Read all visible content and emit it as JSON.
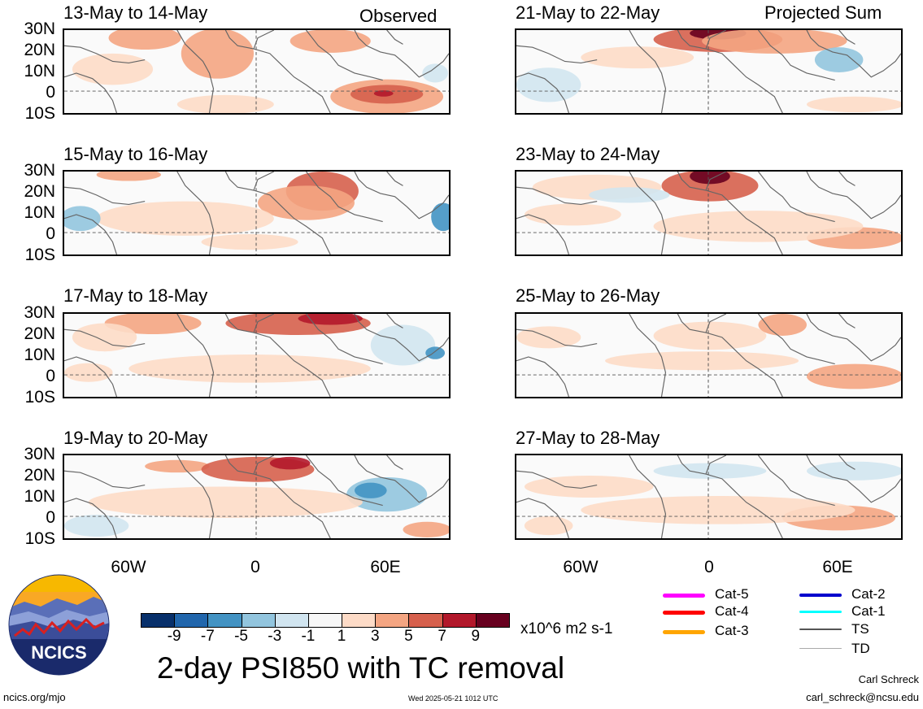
{
  "header": {
    "observed_label": "Observed",
    "projected_label": "Projected Sum"
  },
  "panels_left": [
    {
      "date": "13-May to 14-May"
    },
    {
      "date": "15-May to 16-May"
    },
    {
      "date": "17-May to 18-May"
    },
    {
      "date": "19-May to 20-May"
    }
  ],
  "panels_right": [
    {
      "date": "21-May to 22-May"
    },
    {
      "date": "23-May to 24-May"
    },
    {
      "date": "25-May to 26-May"
    },
    {
      "date": "27-May to 28-May"
    }
  ],
  "axes": {
    "lat_ticks": [
      "30N",
      "20N",
      "10N",
      "0",
      "10S"
    ],
    "lon_ticks": [
      "60W",
      "0",
      "60E"
    ]
  },
  "colorbar": {
    "colors": [
      "#08306b",
      "#2166ac",
      "#4393c3",
      "#92c5de",
      "#d1e5f0",
      "#f7f7f7",
      "#fddbc7",
      "#f4a582",
      "#d6604d",
      "#b2182b",
      "#67001f"
    ],
    "labels": [
      "-9",
      "-7",
      "-5",
      "-3",
      "-1",
      "1",
      "3",
      "5",
      "7",
      "9"
    ],
    "units": "x10^6 m2 s-1"
  },
  "legend": [
    {
      "label": "Cat-5",
      "color": "#ff00ff"
    },
    {
      "label": "Cat-4",
      "color": "#ff0000"
    },
    {
      "label": "Cat-3",
      "color": "#ffa500"
    },
    {
      "label": "Cat-2",
      "color": "#0000cd"
    },
    {
      "label": "Cat-1",
      "color": "#00ffff"
    },
    {
      "label": "TS",
      "color": "#555555"
    },
    {
      "label": "TD",
      "color": "#aaaaaa"
    }
  ],
  "title": "2-day PSI850 with TC removal",
  "logo_text": "NCICS",
  "footer": {
    "url": "ncics.org/mjo",
    "timestamp": "Wed 2025-05-21 1012 UTC",
    "author": "Carl Schreck",
    "email": "carl_schreck@ncsu.edu"
  }
}
